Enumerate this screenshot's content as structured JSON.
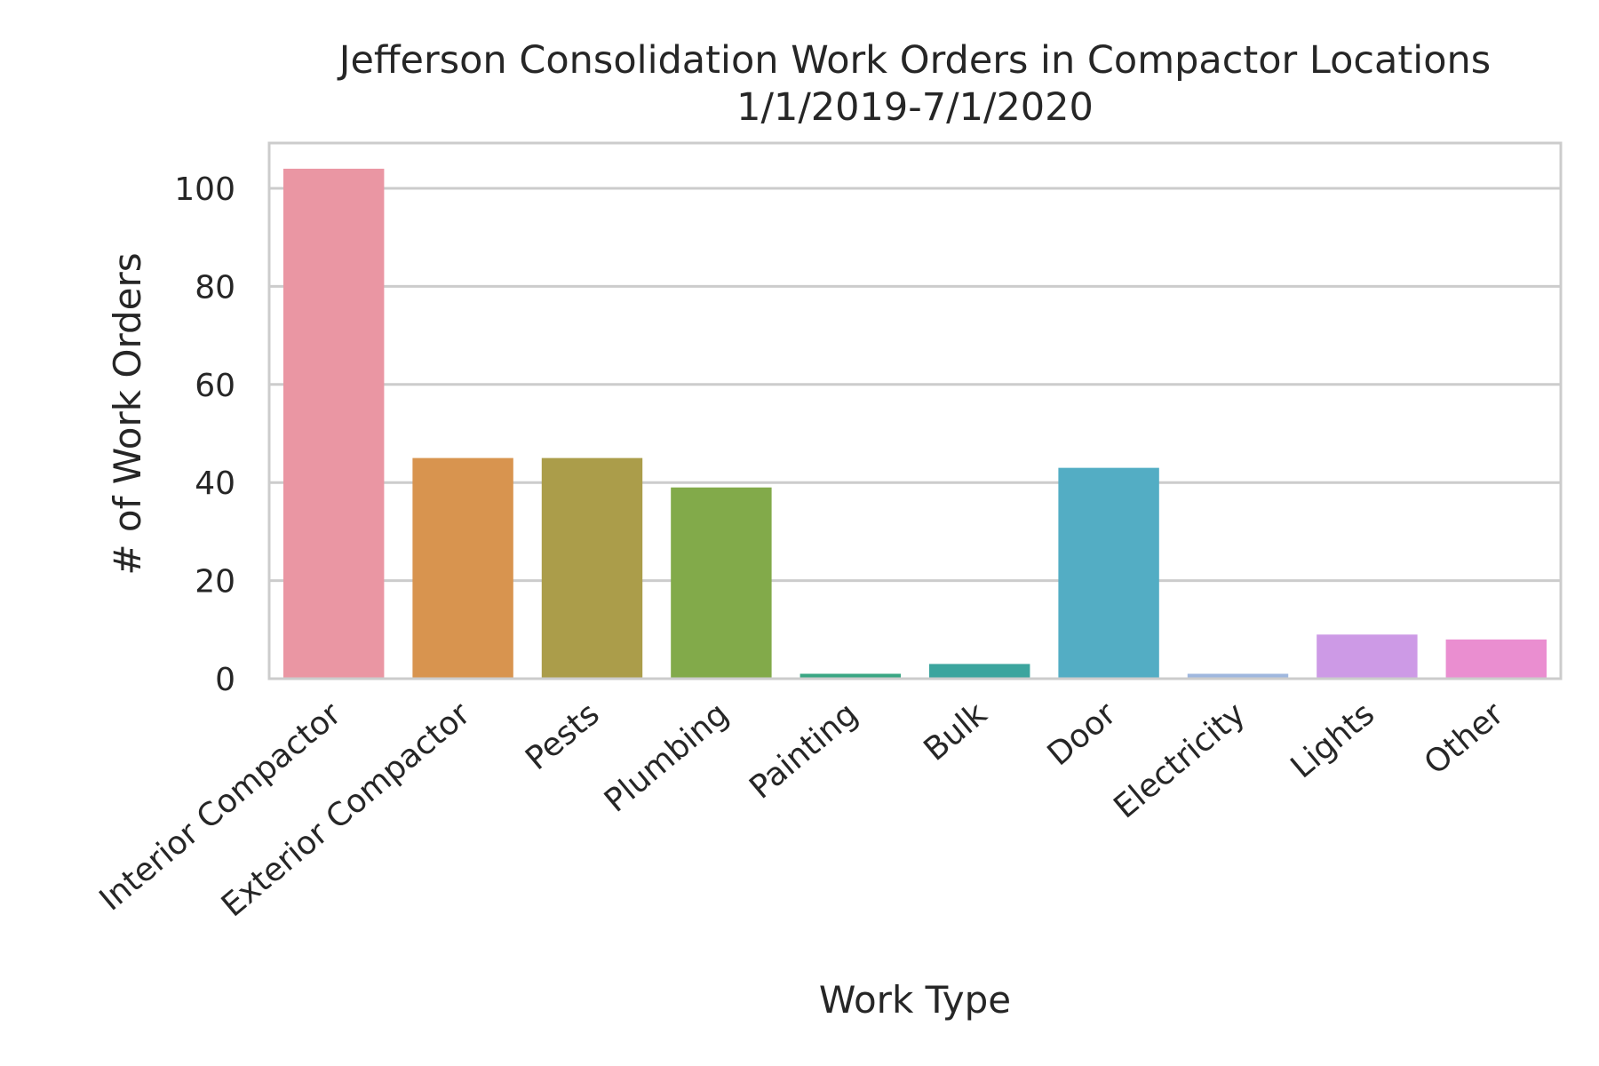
{
  "chart_data": {
    "type": "bar",
    "title_line1": "Jefferson Consolidation Work Orders in Compactor Locations",
    "title_line2": "1/1/2019-7/1/2020",
    "xlabel": "Work Type",
    "ylabel": "# of Work Orders",
    "categories": [
      "Interior Compactor",
      "Exterior Compactor",
      "Pests",
      "Plumbing",
      "Painting",
      "Bulk",
      "Door",
      "Electricity",
      "Lights",
      "Other"
    ],
    "values": [
      104,
      45,
      45,
      39,
      1,
      3,
      43,
      1,
      9,
      8
    ],
    "colors": [
      "#ea96a3",
      "#d8944f",
      "#ab9d4a",
      "#82aa4a",
      "#39a683",
      "#3ca59e",
      "#53adc4",
      "#9fb7de",
      "#cd9ae6",
      "#ea8ed0"
    ],
    "ylim": [
      0,
      110
    ],
    "yticks": [
      0,
      20,
      40,
      60,
      80,
      100
    ],
    "grid": true,
    "legend": false
  }
}
